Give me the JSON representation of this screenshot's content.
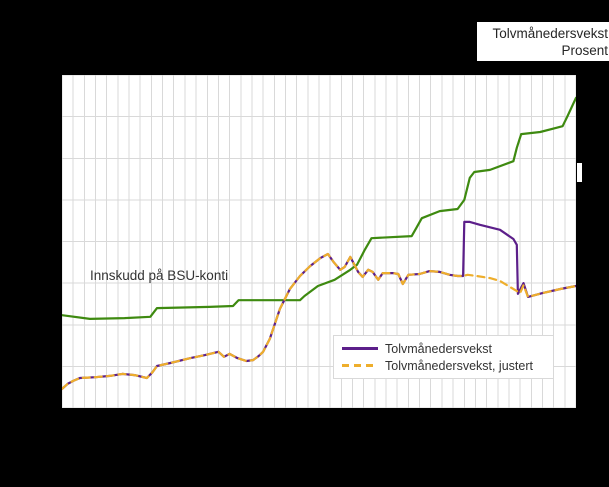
{
  "header": {
    "title_line1": "Tolvmånedersvekst",
    "title_line2": "Prosent"
  },
  "colors": {
    "background": "#000000",
    "plot_background": "#ffffff",
    "grid": "#d9d9d9",
    "text": "#333333",
    "green_series": "#3e8a10",
    "purple_series": "#5c1f8a",
    "orange_series": "#eeae2c",
    "marker": "#ffffff"
  },
  "chart_data": {
    "type": "line",
    "title": "Tolvmånedersvekst",
    "subtitle": "Prosent",
    "annotation": {
      "text": "Innskudd på BSU-konti"
    },
    "legend_position": "inside-bottom-right",
    "grid": "on",
    "x_axis": {
      "intervals": 46,
      "tick_labels_visible": false
    },
    "y_axis": {
      "intervals": 8,
      "tick_labels_visible": false,
      "units_note": "No numeric tick labels are visible in the screenshot; y values below are expressed in horizontal-gridline intervals measured from the bottom axis (0 = bottom line, 8 = top line). x values are vertical-gridline intervals from the left axis (0..46)."
    },
    "series": [
      {
        "id": "innskudd",
        "name": "Innskudd på BSU-konti",
        "color": "#3e8a10",
        "dash": false,
        "in_legend": false,
        "points": [
          [
            0,
            2.23
          ],
          [
            2.5,
            2.14
          ],
          [
            5.6,
            2.16
          ],
          [
            7.9,
            2.19
          ],
          [
            8.5,
            2.4
          ],
          [
            13.2,
            2.43
          ],
          [
            15.3,
            2.45
          ],
          [
            15.8,
            2.59
          ],
          [
            21.3,
            2.59
          ],
          [
            21.7,
            2.69
          ],
          [
            22.9,
            2.93
          ],
          [
            24.4,
            3.08
          ],
          [
            25.8,
            3.32
          ],
          [
            26.4,
            3.44
          ],
          [
            27.1,
            3.8
          ],
          [
            27.7,
            4.08
          ],
          [
            31.3,
            4.13
          ],
          [
            31.7,
            4.32
          ],
          [
            32.2,
            4.56
          ],
          [
            33.8,
            4.73
          ],
          [
            35.4,
            4.78
          ],
          [
            36.0,
            5.0
          ],
          [
            36.5,
            5.53
          ],
          [
            36.9,
            5.67
          ],
          [
            38.3,
            5.72
          ],
          [
            40.4,
            5.93
          ],
          [
            40.7,
            6.25
          ],
          [
            41.1,
            6.58
          ],
          [
            42.8,
            6.63
          ],
          [
            44.8,
            6.77
          ],
          [
            45.2,
            6.99
          ],
          [
            46,
            7.45
          ]
        ]
      },
      {
        "id": "tolvmanedersvekst",
        "name": "Tolvmånedersvekst",
        "color": "#5c1f8a",
        "dash": false,
        "in_legend": true,
        "points": [
          [
            0,
            0.46
          ],
          [
            0.5,
            0.58
          ],
          [
            1.0,
            0.65
          ],
          [
            1.6,
            0.72
          ],
          [
            3.0,
            0.74
          ],
          [
            4.3,
            0.77
          ],
          [
            5.4,
            0.82
          ],
          [
            6.5,
            0.79
          ],
          [
            7.6,
            0.72
          ],
          [
            8.1,
            0.86
          ],
          [
            8.5,
            1.01
          ],
          [
            9.7,
            1.08
          ],
          [
            11.5,
            1.2
          ],
          [
            12.8,
            1.27
          ],
          [
            14.0,
            1.35
          ],
          [
            14.5,
            1.23
          ],
          [
            15.0,
            1.3
          ],
          [
            15.7,
            1.2
          ],
          [
            16.5,
            1.13
          ],
          [
            17.1,
            1.15
          ],
          [
            17.6,
            1.25
          ],
          [
            18.0,
            1.35
          ],
          [
            18.6,
            1.66
          ],
          [
            19.5,
            2.38
          ],
          [
            20.4,
            2.86
          ],
          [
            21.3,
            3.17
          ],
          [
            22.2,
            3.41
          ],
          [
            23.1,
            3.6
          ],
          [
            23.8,
            3.7
          ],
          [
            24.3,
            3.51
          ],
          [
            24.9,
            3.32
          ],
          [
            25.3,
            3.39
          ],
          [
            25.8,
            3.63
          ],
          [
            26.5,
            3.27
          ],
          [
            26.9,
            3.15
          ],
          [
            27.4,
            3.32
          ],
          [
            27.8,
            3.27
          ],
          [
            28.3,
            3.08
          ],
          [
            28.7,
            3.24
          ],
          [
            29.6,
            3.24
          ],
          [
            30.1,
            3.22
          ],
          [
            30.5,
            2.98
          ],
          [
            31.0,
            3.2
          ],
          [
            32.0,
            3.22
          ],
          [
            32.9,
            3.29
          ],
          [
            33.8,
            3.27
          ],
          [
            34.7,
            3.2
          ],
          [
            35.4,
            3.17
          ],
          [
            35.9,
            3.17
          ],
          [
            36.0,
            4.47
          ],
          [
            36.5,
            4.47
          ],
          [
            37.4,
            4.4
          ],
          [
            39.2,
            4.28
          ],
          [
            40.4,
            4.06
          ],
          [
            40.7,
            3.92
          ],
          [
            40.8,
            2.74
          ],
          [
            41.3,
            3.0
          ],
          [
            41.7,
            2.67
          ],
          [
            43.0,
            2.76
          ],
          [
            44.6,
            2.86
          ],
          [
            46,
            2.93
          ]
        ]
      },
      {
        "id": "tolvmanedersvekst-justert",
        "name": "Tolvmånedersvekst, justert",
        "color": "#eeae2c",
        "dash": true,
        "in_legend": true,
        "points": [
          [
            0,
            0.46
          ],
          [
            0.5,
            0.58
          ],
          [
            1.0,
            0.65
          ],
          [
            1.6,
            0.72
          ],
          [
            3.0,
            0.74
          ],
          [
            4.3,
            0.77
          ],
          [
            5.4,
            0.82
          ],
          [
            6.5,
            0.79
          ],
          [
            7.6,
            0.72
          ],
          [
            8.1,
            0.86
          ],
          [
            8.5,
            1.01
          ],
          [
            9.7,
            1.08
          ],
          [
            11.5,
            1.2
          ],
          [
            12.8,
            1.27
          ],
          [
            14.0,
            1.35
          ],
          [
            14.5,
            1.23
          ],
          [
            15.0,
            1.3
          ],
          [
            15.7,
            1.2
          ],
          [
            16.5,
            1.13
          ],
          [
            17.1,
            1.15
          ],
          [
            17.6,
            1.25
          ],
          [
            18.0,
            1.35
          ],
          [
            18.6,
            1.66
          ],
          [
            19.5,
            2.38
          ],
          [
            20.4,
            2.86
          ],
          [
            21.3,
            3.17
          ],
          [
            22.2,
            3.41
          ],
          [
            23.1,
            3.6
          ],
          [
            23.8,
            3.7
          ],
          [
            24.3,
            3.51
          ],
          [
            24.9,
            3.32
          ],
          [
            25.3,
            3.39
          ],
          [
            25.8,
            3.63
          ],
          [
            26.5,
            3.27
          ],
          [
            26.9,
            3.15
          ],
          [
            27.4,
            3.32
          ],
          [
            27.8,
            3.27
          ],
          [
            28.3,
            3.08
          ],
          [
            28.7,
            3.24
          ],
          [
            29.6,
            3.24
          ],
          [
            30.1,
            3.22
          ],
          [
            30.5,
            2.98
          ],
          [
            31.0,
            3.2
          ],
          [
            32.0,
            3.22
          ],
          [
            32.9,
            3.29
          ],
          [
            33.8,
            3.27
          ],
          [
            34.7,
            3.2
          ],
          [
            35.4,
            3.17
          ],
          [
            35.9,
            3.17
          ],
          [
            36.3,
            3.2
          ],
          [
            37.1,
            3.17
          ],
          [
            38.3,
            3.12
          ],
          [
            39.2,
            3.05
          ],
          [
            40.4,
            2.86
          ],
          [
            41.0,
            2.76
          ],
          [
            41.3,
            2.95
          ],
          [
            41.7,
            2.67
          ],
          [
            43.0,
            2.76
          ],
          [
            44.6,
            2.86
          ],
          [
            46,
            2.93
          ]
        ]
      }
    ]
  },
  "legend": {
    "items": [
      {
        "label": "Tolvmånedersvekst",
        "series_id": "tolvmanedersvekst"
      },
      {
        "label": "Tolvmånedersvekst, justert",
        "series_id": "tolvmanedersvekst-justert"
      }
    ]
  }
}
